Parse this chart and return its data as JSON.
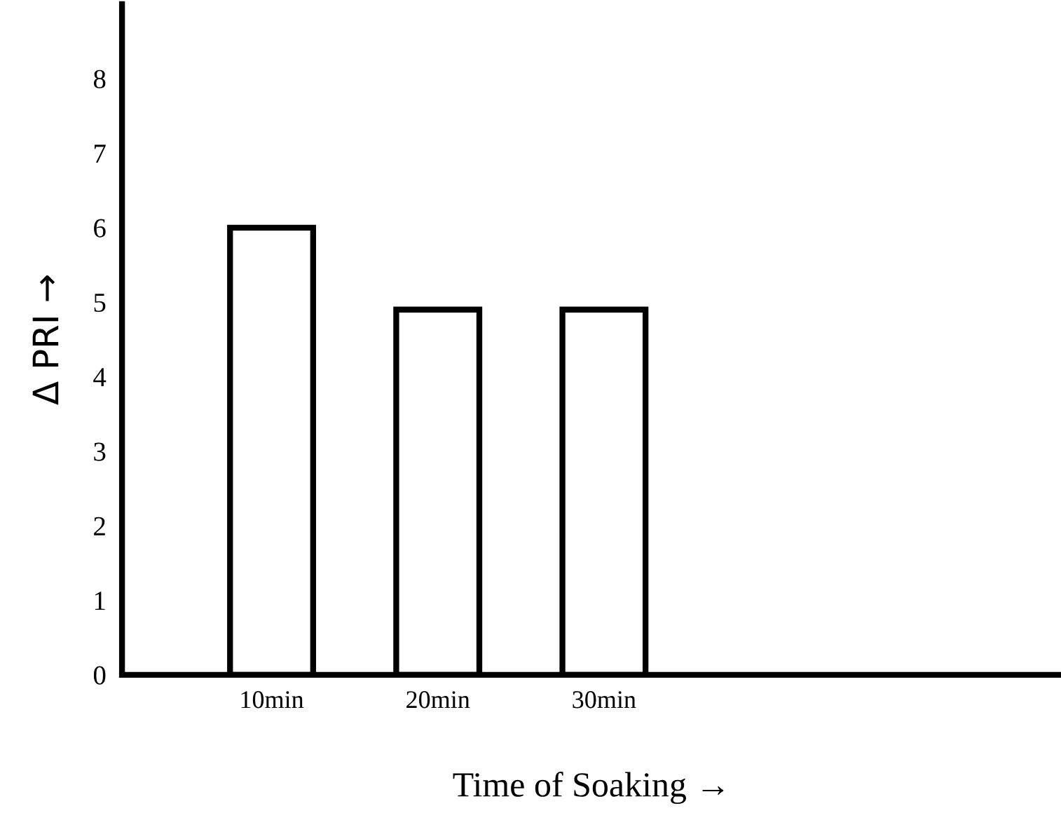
{
  "chart_data": {
    "type": "bar",
    "xlabel": "Time of Soaking →",
    "ylabel": "Δ PRI →",
    "categories": [
      "10min",
      "20min",
      "30min"
    ],
    "values": [
      6.0,
      4.9,
      4.9
    ],
    "color": "#ffffff",
    "ylim": [
      0,
      9
    ],
    "yticks": [
      0,
      1,
      2,
      3,
      4,
      5,
      6,
      7,
      8
    ],
    "grid": false,
    "legend": false
  }
}
